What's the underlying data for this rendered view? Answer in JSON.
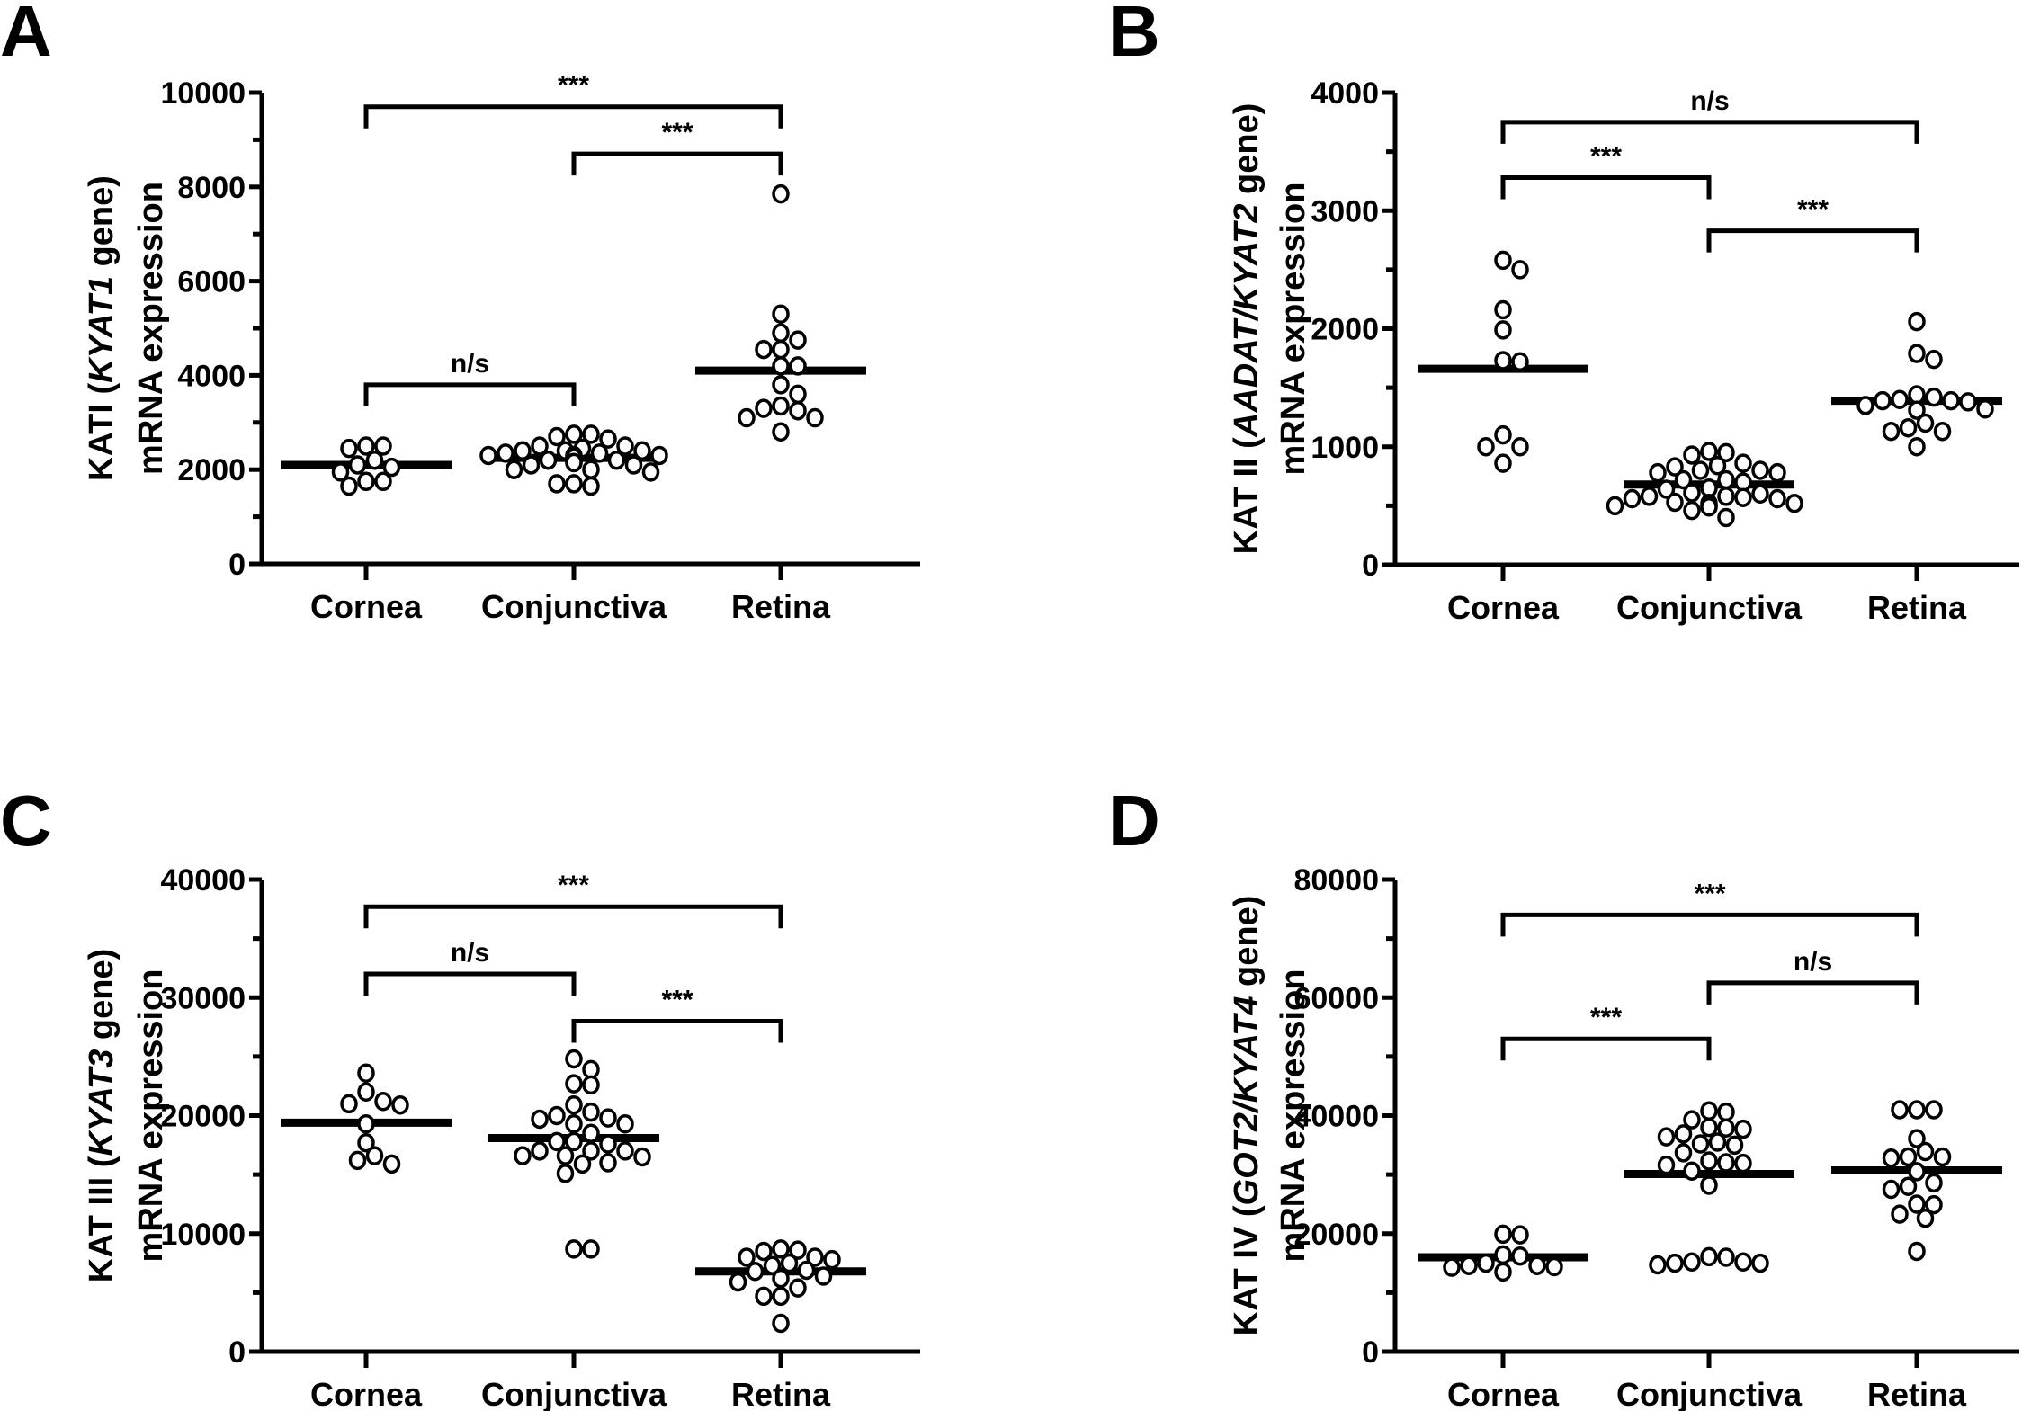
{
  "chart_data": [
    {
      "panel": "A",
      "type": "scatter",
      "subtype": "dot plot with median line",
      "ylabel_parts": [
        {
          "text": "KATI (",
          "italic": false
        },
        {
          "text": "KYAT1",
          "italic": true
        },
        {
          "text": " gene)",
          "italic": false
        }
      ],
      "ylabel_line2": "mRNA expression",
      "ylim": [
        0,
        10000
      ],
      "yticks": [
        0,
        2000,
        4000,
        6000,
        8000,
        10000
      ],
      "yticks_minor_step": 1000,
      "categories": [
        "Cornea",
        "Conjunctiva",
        "Retina"
      ],
      "series": [
        {
          "name": "Cornea",
          "median": 2100,
          "values": [
            2500,
            2200,
            2050,
            2100,
            2450,
            2500,
            1950,
            1750,
            1650,
            1750
          ]
        },
        {
          "name": "Conjunctiva",
          "median": 2250,
          "values": [
            2750,
            2650,
            2500,
            2700,
            2750,
            2400,
            2350,
            2400,
            2300,
            2200,
            2150,
            2100,
            2100,
            2150,
            2200,
            2300,
            2350,
            2400,
            2500,
            2450,
            2000,
            1950,
            2000,
            1700,
            1650,
            1700,
            2250,
            2300
          ]
        },
        {
          "name": "Retina",
          "median": 4100,
          "values": [
            7850,
            5300,
            4900,
            4550,
            4550,
            4750,
            4200,
            4200,
            3800,
            3600,
            3300,
            3100,
            3100,
            3250,
            3350,
            2800
          ]
        }
      ],
      "comparisons": [
        {
          "from": "Cornea",
          "to": "Retina",
          "label": "***",
          "level": 9700
        },
        {
          "from": "Conjunctiva",
          "to": "Retina",
          "label": "***",
          "level": 8700
        },
        {
          "from": "Cornea",
          "to": "Conjunctiva",
          "label": "n/s",
          "level": 3800
        }
      ]
    },
    {
      "panel": "B",
      "type": "scatter",
      "subtype": "dot plot with median line",
      "ylabel_parts": [
        {
          "text": "KAT II (",
          "italic": false
        },
        {
          "text": "AADAT/KYAT2",
          "italic": true
        },
        {
          "text": " gene)",
          "italic": false
        }
      ],
      "ylabel_line2": "mRNA expression",
      "ylim": [
        0,
        4000
      ],
      "yticks": [
        0,
        1000,
        2000,
        3000,
        4000
      ],
      "yticks_minor_step": 500,
      "categories": [
        "Cornea",
        "Conjunctiva",
        "Retina"
      ],
      "series": [
        {
          "name": "Cornea",
          "median": 1660,
          "values": [
            2500,
            2580,
            2160,
            1990,
            1720,
            1730,
            1100,
            1000,
            1000,
            860
          ]
        },
        {
          "name": "Conjunctiva",
          "median": 680,
          "values": [
            950,
            860,
            830,
            800,
            800,
            840,
            930,
            960,
            780,
            720,
            700,
            610,
            640,
            580,
            580,
            570,
            600,
            650,
            720,
            780,
            560,
            520,
            500,
            490,
            500,
            520,
            530,
            560,
            460,
            400
          ]
        },
        {
          "name": "Retina",
          "median": 1390,
          "values": [
            2060,
            1790,
            1740,
            1440,
            1390,
            1400,
            1420,
            1380,
            1390,
            1350,
            1320,
            1310,
            1200,
            1130,
            1130,
            1160,
            1000
          ]
        }
      ],
      "comparisons": [
        {
          "from": "Cornea",
          "to": "Retina",
          "label": "n/s",
          "level": 3750
        },
        {
          "from": "Cornea",
          "to": "Conjunctiva",
          "label": "***",
          "level": 3280
        },
        {
          "from": "Conjunctiva",
          "to": "Retina",
          "label": "***",
          "level": 2830
        }
      ]
    },
    {
      "panel": "C",
      "type": "scatter",
      "subtype": "dot plot with median line",
      "ylabel_parts": [
        {
          "text": "KAT III (",
          "italic": false
        },
        {
          "text": "KYAT3",
          "italic": true
        },
        {
          "text": " gene)",
          "italic": false
        }
      ],
      "ylabel_line2": "mRNA expression",
      "ylim": [
        0,
        40000
      ],
      "yticks": [
        0,
        10000,
        20000,
        30000,
        40000
      ],
      "yticks_minor_step": 5000,
      "categories": [
        "Cornea",
        "Conjunctiva",
        "Retina"
      ],
      "series": [
        {
          "name": "Cornea",
          "median": 19400,
          "values": [
            23600,
            22000,
            21000,
            21200,
            20900,
            19300,
            17700,
            16600,
            15900,
            16200
          ]
        },
        {
          "name": "Conjunctiva",
          "median": 18100,
          "values": [
            24800,
            23900,
            22600,
            22700,
            20300,
            19800,
            19300,
            19300,
            19700,
            20000,
            20900,
            18500,
            17800,
            17600,
            17000,
            17000,
            17000,
            17800,
            16600,
            16500,
            15900,
            15100,
            16600,
            16000,
            8700,
            8700
          ]
        },
        {
          "name": "Retina",
          "median": 6800,
          "values": [
            8000,
            7500,
            7300,
            8600,
            8500,
            8700,
            7800,
            8000,
            6900,
            6400,
            6800,
            5900,
            5400,
            6200,
            4700,
            4700,
            2400
          ]
        }
      ],
      "comparisons": [
        {
          "from": "Cornea",
          "to": "Retina",
          "label": "***",
          "level": 37700
        },
        {
          "from": "Cornea",
          "to": "Conjunctiva",
          "label": "n/s",
          "level": 32000
        },
        {
          "from": "Conjunctiva",
          "to": "Retina",
          "label": "***",
          "level": 28000
        }
      ]
    },
    {
      "panel": "D",
      "type": "scatter",
      "subtype": "dot plot with median line",
      "ylabel_parts": [
        {
          "text": "KAT IV (",
          "italic": false
        },
        {
          "text": "GOT2/KYAT4",
          "italic": true
        },
        {
          "text": " gene)",
          "italic": false
        }
      ],
      "ylabel_line2": "mRNA expression",
      "ylim": [
        0,
        80000
      ],
      "yticks": [
        0,
        20000,
        40000,
        60000,
        80000
      ],
      "yticks_minor_step": 10000,
      "categories": [
        "Cornea",
        "Conjunctiva",
        "Retina"
      ],
      "series": [
        {
          "name": "Cornea",
          "median": 16000,
          "values": [
            19800,
            19900,
            16200,
            14600,
            14400,
            13500,
            14300,
            14600,
            15000,
            16400
          ]
        },
        {
          "name": "Conjunctiva",
          "median": 30100,
          "values": [
            40600,
            40800,
            38000,
            36400,
            36900,
            37700,
            37900,
            39300,
            35500,
            35000,
            33700,
            32000,
            31600,
            32300,
            31900,
            35200,
            30600,
            28200,
            16100,
            15200,
            15200,
            14700,
            15000,
            15000,
            16000
          ]
        },
        {
          "name": "Retina",
          "median": 30700,
          "values": [
            41000,
            41000,
            41000,
            36100,
            33900,
            33000,
            32800,
            33000,
            30500,
            28600,
            27500,
            28000,
            25000,
            23300,
            22600,
            24900,
            17000
          ]
        }
      ],
      "comparisons": [
        {
          "from": "Cornea",
          "to": "Retina",
          "label": "***",
          "level": 74000
        },
        {
          "from": "Conjunctiva",
          "to": "Retina",
          "label": "n/s",
          "level": 62500
        },
        {
          "from": "Cornea",
          "to": "Conjunctiva",
          "label": "***",
          "level": 53000
        }
      ]
    }
  ]
}
